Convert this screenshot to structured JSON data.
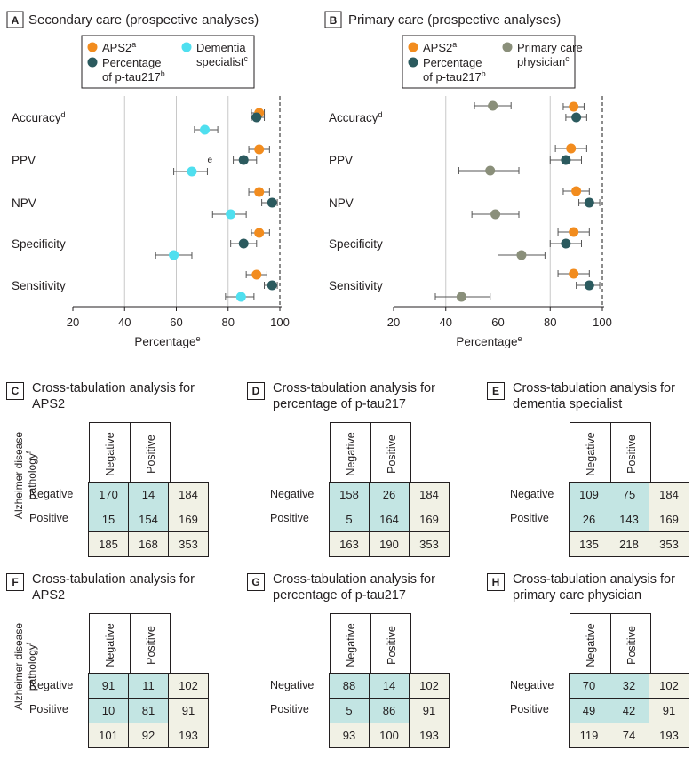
{
  "chart_data": [
    {
      "type": "scatter",
      "panel": "A",
      "title": "Secondary care (prospective analyses)",
      "legend": [
        {
          "label": "APS2",
          "sup": "a",
          "color": "#f28c1e"
        },
        {
          "label": "Percentage of p-tau217",
          "sup": "b",
          "color": "#2b5a5e"
        },
        {
          "label": "Dementia specialist",
          "sup": "c",
          "color": "#4fdfef"
        }
      ],
      "xlabel": "Percentage",
      "xlabel_sup": "e",
      "xlim": [
        20,
        100
      ],
      "xticks": [
        "20",
        "40",
        "60",
        "80",
        "100"
      ],
      "categories": [
        "Accuracy",
        "PPV",
        "NPV",
        "Specificity",
        "Sensitivity"
      ],
      "category_sups": [
        "d",
        "",
        "",
        "",
        ""
      ],
      "note": "e",
      "series": [
        {
          "name": "APS2",
          "color": "#f28c1e",
          "points": [
            {
              "x": 92,
              "lo": 89,
              "hi": 94
            },
            {
              "x": 92,
              "lo": 88,
              "hi": 96
            },
            {
              "x": 92,
              "lo": 88,
              "hi": 96
            },
            {
              "x": 92,
              "lo": 89,
              "hi": 96
            },
            {
              "x": 91,
              "lo": 87,
              "hi": 95
            }
          ]
        },
        {
          "name": "Percentage of p-tau217",
          "color": "#2b5a5e",
          "points": [
            {
              "x": 91,
              "lo": 89,
              "hi": 94
            },
            {
              "x": 86,
              "lo": 82,
              "hi": 91
            },
            {
              "x": 97,
              "lo": 93,
              "hi": 99
            },
            {
              "x": 86,
              "lo": 81,
              "hi": 91
            },
            {
              "x": 97,
              "lo": 94,
              "hi": 99
            }
          ]
        },
        {
          "name": "Dementia specialist",
          "color": "#4fdfef",
          "points": [
            {
              "x": 71,
              "lo": 67,
              "hi": 76
            },
            {
              "x": 66,
              "lo": 59,
              "hi": 72
            },
            {
              "x": 81,
              "lo": 74,
              "hi": 87
            },
            {
              "x": 59,
              "lo": 52,
              "hi": 66
            },
            {
              "x": 85,
              "lo": 79,
              "hi": 90
            }
          ]
        }
      ]
    },
    {
      "type": "scatter",
      "panel": "B",
      "title": "Primary care (prospective analyses)",
      "legend": [
        {
          "label": "APS2",
          "sup": "a",
          "color": "#f28c1e"
        },
        {
          "label": "Percentage of p-tau217",
          "sup": "b",
          "color": "#2b5a5e"
        },
        {
          "label": "Primary care physician",
          "sup": "c",
          "color": "#8a8f7a"
        }
      ],
      "xlabel": "Percentage",
      "xlabel_sup": "e",
      "xlim": [
        20,
        100
      ],
      "xticks": [
        "20",
        "40",
        "60",
        "80",
        "100"
      ],
      "categories": [
        "Accuracy",
        "PPV",
        "NPV",
        "Specificity",
        "Sensitivity"
      ],
      "category_sups": [
        "d",
        "",
        "",
        "",
        ""
      ],
      "note": "",
      "series": [
        {
          "name": "APS2",
          "color": "#f28c1e",
          "points": [
            {
              "x": 89,
              "lo": 85,
              "hi": 93
            },
            {
              "x": 88,
              "lo": 82,
              "hi": 94
            },
            {
              "x": 90,
              "lo": 85,
              "hi": 95
            },
            {
              "x": 89,
              "lo": 83,
              "hi": 95
            },
            {
              "x": 89,
              "lo": 83,
              "hi": 95
            }
          ]
        },
        {
          "name": "Percentage of p-tau217",
          "color": "#2b5a5e",
          "points": [
            {
              "x": 90,
              "lo": 86,
              "hi": 94
            },
            {
              "x": 86,
              "lo": 80,
              "hi": 92
            },
            {
              "x": 95,
              "lo": 91,
              "hi": 99
            },
            {
              "x": 86,
              "lo": 80,
              "hi": 92
            },
            {
              "x": 95,
              "lo": 90,
              "hi": 99
            }
          ]
        },
        {
          "name": "Primary care physician",
          "color": "#8a8f7a",
          "points": [
            {
              "x": 58,
              "lo": 51,
              "hi": 65
            },
            {
              "x": 57,
              "lo": 45,
              "hi": 68
            },
            {
              "x": 59,
              "lo": 50,
              "hi": 68
            },
            {
              "x": 69,
              "lo": 60,
              "hi": 78
            },
            {
              "x": 46,
              "lo": 36,
              "hi": 57
            }
          ]
        }
      ]
    }
  ],
  "crosstabs": {
    "col_headers": [
      "Negative",
      "Positive"
    ],
    "row_labels": [
      "Negative",
      "Positive"
    ],
    "row_axis_label": "Alzheimer disease pathology",
    "row_axis_sup": "f",
    "C": {
      "letter": "C",
      "title": "Cross-tabulation analysis for APS2",
      "cells": [
        [
          "170",
          "14",
          "184"
        ],
        [
          "15",
          "154",
          "169"
        ]
      ],
      "totals": [
        "185",
        "168",
        "353"
      ]
    },
    "D": {
      "letter": "D",
      "title": "Cross-tabulation analysis for percentage of p-tau217",
      "cells": [
        [
          "158",
          "26",
          "184"
        ],
        [
          "5",
          "164",
          "169"
        ]
      ],
      "totals": [
        "163",
        "190",
        "353"
      ]
    },
    "E": {
      "letter": "E",
      "title": "Cross-tabulation analysis for dementia specialist",
      "cells": [
        [
          "109",
          "75",
          "184"
        ],
        [
          "26",
          "143",
          "169"
        ]
      ],
      "totals": [
        "135",
        "218",
        "353"
      ]
    },
    "F": {
      "letter": "F",
      "title": "Cross-tabulation analysis for APS2",
      "cells": [
        [
          "91",
          "11",
          "102"
        ],
        [
          "10",
          "81",
          "91"
        ]
      ],
      "totals": [
        "101",
        "92",
        "193"
      ]
    },
    "G": {
      "letter": "G",
      "title": "Cross-tabulation analysis for percentage of p-tau217",
      "cells": [
        [
          "88",
          "14",
          "102"
        ],
        [
          "5",
          "86",
          "91"
        ]
      ],
      "totals": [
        "93",
        "100",
        "193"
      ]
    },
    "H": {
      "letter": "H",
      "title": "Cross-tabulation analysis for primary care physician",
      "cells": [
        [
          "70",
          "32",
          "102"
        ],
        [
          "49",
          "42",
          "91"
        ]
      ],
      "totals": [
        "119",
        "74",
        "193"
      ]
    }
  }
}
